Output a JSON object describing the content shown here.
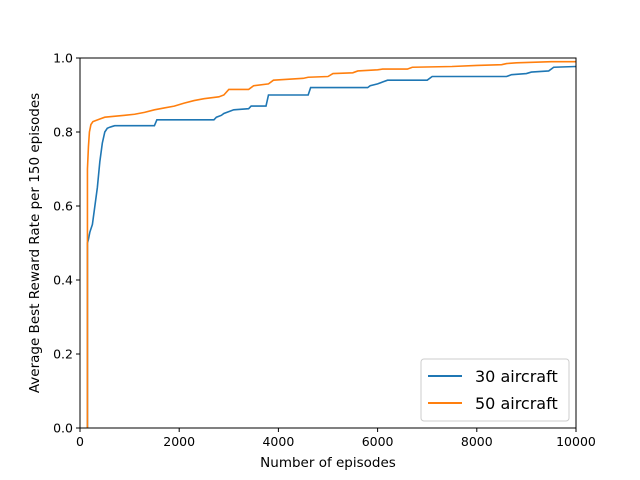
{
  "chart_data": {
    "type": "line",
    "title": "",
    "xlabel": "Number of episodes",
    "ylabel": "Average Best Reward Rate per 150 episodes",
    "xlim": [
      0,
      10000
    ],
    "ylim": [
      0,
      1.0
    ],
    "xticks": [
      0,
      2000,
      4000,
      6000,
      8000,
      10000
    ],
    "yticks": [
      0.0,
      0.2,
      0.4,
      0.6,
      0.8,
      1.0
    ],
    "xtick_labels": [
      "0",
      "2000",
      "4000",
      "6000",
      "8000",
      "10000"
    ],
    "ytick_labels": [
      "0.0",
      "0.2",
      "0.4",
      "0.6",
      "0.8",
      "1.0"
    ],
    "grid": false,
    "legend_position": "bottom-right",
    "series": [
      {
        "name": "30 aircraft",
        "color": "#1f77b4",
        "x": [
          150,
          150,
          170,
          200,
          250,
          300,
          350,
          400,
          450,
          500,
          550,
          600,
          650,
          700,
          1500,
          1550,
          2700,
          2750,
          2850,
          2900,
          3000,
          3100,
          3400,
          3450,
          3750,
          3800,
          4600,
          4650,
          5800,
          5850,
          6000,
          6100,
          6200,
          7000,
          7100,
          8600,
          8700,
          9000,
          9100,
          9450,
          9550,
          10000
        ],
        "y": [
          0.0,
          0.5,
          0.51,
          0.53,
          0.55,
          0.6,
          0.65,
          0.72,
          0.77,
          0.8,
          0.81,
          0.813,
          0.815,
          0.817,
          0.817,
          0.833,
          0.833,
          0.84,
          0.845,
          0.85,
          0.855,
          0.86,
          0.863,
          0.87,
          0.87,
          0.9,
          0.9,
          0.92,
          0.92,
          0.925,
          0.93,
          0.935,
          0.94,
          0.94,
          0.95,
          0.95,
          0.955,
          0.958,
          0.962,
          0.965,
          0.975,
          0.977
        ]
      },
      {
        "name": "50 aircraft",
        "color": "#ff7f0e",
        "x": [
          150,
          150,
          170,
          190,
          220,
          260,
          300,
          400,
          500,
          900,
          1100,
          1300,
          1500,
          1700,
          1900,
          2100,
          2300,
          2500,
          2800,
          2900,
          3000,
          3400,
          3500,
          3800,
          3900,
          4500,
          4600,
          5000,
          5100,
          5500,
          5600,
          6000,
          6100,
          6600,
          6700,
          7500,
          8000,
          8500,
          8600,
          8800,
          9500,
          10000
        ],
        "y": [
          0.0,
          0.7,
          0.76,
          0.8,
          0.82,
          0.828,
          0.83,
          0.835,
          0.84,
          0.845,
          0.848,
          0.853,
          0.86,
          0.865,
          0.87,
          0.878,
          0.885,
          0.89,
          0.895,
          0.9,
          0.915,
          0.915,
          0.925,
          0.93,
          0.94,
          0.945,
          0.948,
          0.95,
          0.958,
          0.96,
          0.965,
          0.968,
          0.97,
          0.97,
          0.975,
          0.977,
          0.98,
          0.982,
          0.985,
          0.987,
          0.99,
          0.99
        ]
      }
    ]
  }
}
